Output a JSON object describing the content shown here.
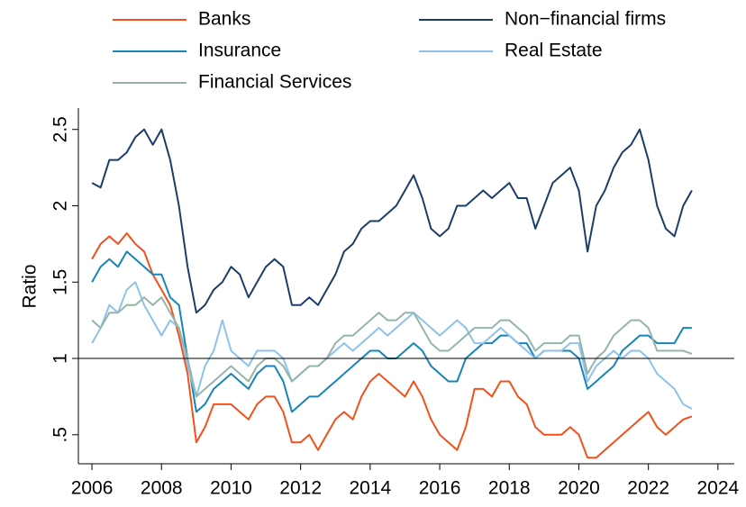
{
  "chart_data": {
    "type": "line",
    "y_label": "Ratio",
    "x": [
      2006,
      2006.25,
      2006.5,
      2006.75,
      2007,
      2007.25,
      2007.5,
      2007.75,
      2008,
      2008.25,
      2008.5,
      2008.75,
      2009,
      2009.25,
      2009.5,
      2009.75,
      2010,
      2010.25,
      2010.5,
      2010.75,
      2011,
      2011.25,
      2011.5,
      2011.75,
      2012,
      2012.25,
      2012.5,
      2012.75,
      2013,
      2013.25,
      2013.5,
      2013.75,
      2014,
      2014.25,
      2014.5,
      2014.75,
      2015,
      2015.25,
      2015.5,
      2015.75,
      2016,
      2016.25,
      2016.5,
      2016.75,
      2017,
      2017.25,
      2017.5,
      2017.75,
      2018,
      2018.25,
      2018.5,
      2018.75,
      2019,
      2019.25,
      2019.5,
      2019.75,
      2020,
      2020.25,
      2020.5,
      2020.75,
      2021,
      2021.25,
      2021.5,
      2021.75,
      2022,
      2022.25,
      2022.5,
      2022.75,
      2023,
      2023.25
    ],
    "series": [
      {
        "name": "Banks",
        "color": "#f2511c",
        "values": [
          1.65,
          1.75,
          1.8,
          1.75,
          1.82,
          1.75,
          1.7,
          1.55,
          1.45,
          1.35,
          1.15,
          0.9,
          0.45,
          0.55,
          0.7,
          0.7,
          0.7,
          0.65,
          0.6,
          0.7,
          0.75,
          0.75,
          0.65,
          0.45,
          0.45,
          0.5,
          0.4,
          0.5,
          0.6,
          0.65,
          0.6,
          0.75,
          0.85,
          0.9,
          0.85,
          0.8,
          0.75,
          0.85,
          0.75,
          0.6,
          0.5,
          0.45,
          0.4,
          0.55,
          0.8,
          0.8,
          0.75,
          0.85,
          0.85,
          0.75,
          0.7,
          0.55,
          0.5,
          0.5,
          0.5,
          0.55,
          0.5,
          0.35,
          0.35,
          0.4,
          0.45,
          0.5,
          0.55,
          0.6,
          0.65,
          0.55,
          0.5,
          0.55,
          0.6,
          0.62
        ]
      },
      {
        "name": "Non−financial firms",
        "color": "#1c3d69",
        "values": [
          2.15,
          2.12,
          2.3,
          2.3,
          2.35,
          2.45,
          2.5,
          2.4,
          2.5,
          2.3,
          2.0,
          1.6,
          1.3,
          1.35,
          1.45,
          1.5,
          1.6,
          1.55,
          1.4,
          1.5,
          1.6,
          1.65,
          1.6,
          1.35,
          1.35,
          1.4,
          1.35,
          1.45,
          1.55,
          1.7,
          1.75,
          1.85,
          1.9,
          1.9,
          1.95,
          2.0,
          2.1,
          2.2,
          2.05,
          1.85,
          1.8,
          1.85,
          2.0,
          2.0,
          2.05,
          2.1,
          2.05,
          2.1,
          2.15,
          2.05,
          2.05,
          1.85,
          2.0,
          2.15,
          2.2,
          2.25,
          2.1,
          1.7,
          2.0,
          2.1,
          2.25,
          2.35,
          2.4,
          2.5,
          2.3,
          2.0,
          1.85,
          1.8,
          2.0,
          2.1
        ]
      },
      {
        "name": "Insurance",
        "color": "#1785b8",
        "values": [
          1.5,
          1.6,
          1.65,
          1.6,
          1.7,
          1.65,
          1.6,
          1.55,
          1.55,
          1.4,
          1.35,
          1.0,
          0.65,
          0.7,
          0.8,
          0.85,
          0.9,
          0.85,
          0.8,
          0.9,
          0.95,
          0.95,
          0.85,
          0.65,
          0.7,
          0.75,
          0.75,
          0.8,
          0.85,
          0.9,
          0.95,
          1.0,
          1.05,
          1.05,
          1.0,
          1.0,
          1.05,
          1.1,
          1.05,
          0.95,
          0.9,
          0.85,
          0.85,
          1.0,
          1.05,
          1.1,
          1.1,
          1.15,
          1.15,
          1.1,
          1.1,
          1.0,
          1.05,
          1.05,
          1.05,
          1.05,
          1.0,
          0.8,
          0.85,
          0.9,
          0.95,
          1.05,
          1.1,
          1.15,
          1.15,
          1.1,
          1.1,
          1.1,
          1.2,
          1.2
        ]
      },
      {
        "name": "Real Estate",
        "color": "#8ec2ea",
        "values": [
          1.1,
          1.2,
          1.35,
          1.3,
          1.45,
          1.5,
          1.35,
          1.25,
          1.15,
          1.25,
          1.2,
          0.95,
          0.75,
          0.95,
          1.05,
          1.25,
          1.05,
          1.0,
          0.95,
          1.05,
          1.05,
          1.05,
          1.0,
          0.85,
          0.9,
          0.95,
          0.95,
          1.0,
          1.05,
          1.1,
          1.05,
          1.1,
          1.15,
          1.2,
          1.15,
          1.2,
          1.25,
          1.3,
          1.25,
          1.2,
          1.15,
          1.2,
          1.25,
          1.2,
          1.1,
          1.1,
          1.15,
          1.2,
          1.15,
          1.1,
          1.05,
          1.0,
          1.05,
          1.05,
          1.05,
          1.1,
          1.1,
          0.85,
          0.95,
          1.0,
          1.05,
          1.0,
          1.05,
          1.05,
          1.0,
          0.9,
          0.85,
          0.8,
          0.7,
          0.67
        ]
      },
      {
        "name": "Financial Services",
        "color": "#95b4aa",
        "values": [
          1.25,
          1.2,
          1.3,
          1.3,
          1.35,
          1.35,
          1.4,
          1.35,
          1.4,
          1.3,
          1.2,
          1.0,
          0.75,
          0.8,
          0.85,
          0.9,
          0.95,
          0.9,
          0.85,
          0.95,
          1.0,
          1.0,
          0.95,
          0.85,
          0.9,
          0.95,
          0.95,
          1.0,
          1.1,
          1.15,
          1.15,
          1.2,
          1.25,
          1.3,
          1.25,
          1.25,
          1.3,
          1.3,
          1.2,
          1.1,
          1.05,
          1.05,
          1.1,
          1.15,
          1.2,
          1.2,
          1.2,
          1.25,
          1.25,
          1.2,
          1.15,
          1.05,
          1.1,
          1.1,
          1.1,
          1.15,
          1.15,
          0.9,
          1.0,
          1.05,
          1.15,
          1.2,
          1.25,
          1.25,
          1.2,
          1.05,
          1.05,
          1.05,
          1.05,
          1.03
        ]
      }
    ],
    "xlim": [
      2005.61,
      2024.47
    ],
    "xticks": [
      2006,
      2008,
      2010,
      2012,
      2014,
      2016,
      2018,
      2020,
      2022,
      2024
    ],
    "ylim": [
      0.31,
      2.64
    ],
    "yticks": [
      {
        "value": 0.5,
        "label": ".5"
      },
      1,
      1.5,
      2,
      2.5
    ],
    "hline": 1,
    "grid": false
  }
}
